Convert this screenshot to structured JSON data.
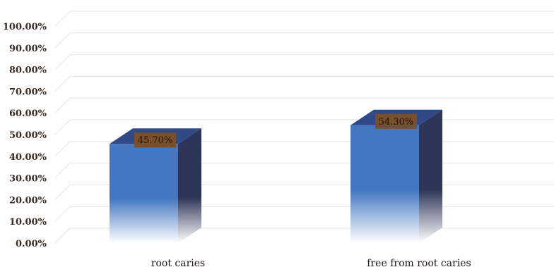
{
  "chart_data": {
    "type": "bar",
    "categories": [
      "root caries",
      "free from root caries"
    ],
    "values": [
      45.7,
      54.3
    ],
    "data_labels": [
      "45.70%",
      "54.30%"
    ],
    "title": "",
    "xlabel": "",
    "ylabel": "",
    "ylim": [
      0,
      100
    ],
    "y_ticks": [
      "0.00%",
      "10.00%",
      "20.00%",
      "30.00%",
      "40.00%",
      "50.00%",
      "60.00%",
      "70.00%",
      "80.00%",
      "90.00%",
      "100.00%"
    ],
    "y_tick_values": [
      0,
      10,
      20,
      30,
      40,
      50,
      60,
      70,
      80,
      90,
      100
    ],
    "grid": true,
    "legend": "none",
    "style": "3d-column",
    "colors": {
      "bar_front": "#4477c0",
      "bar_top": "#2f4a86",
      "bar_side": "#2d3558",
      "label_box": "#7a4f2a",
      "gridline": "#e4e4e4"
    }
  }
}
